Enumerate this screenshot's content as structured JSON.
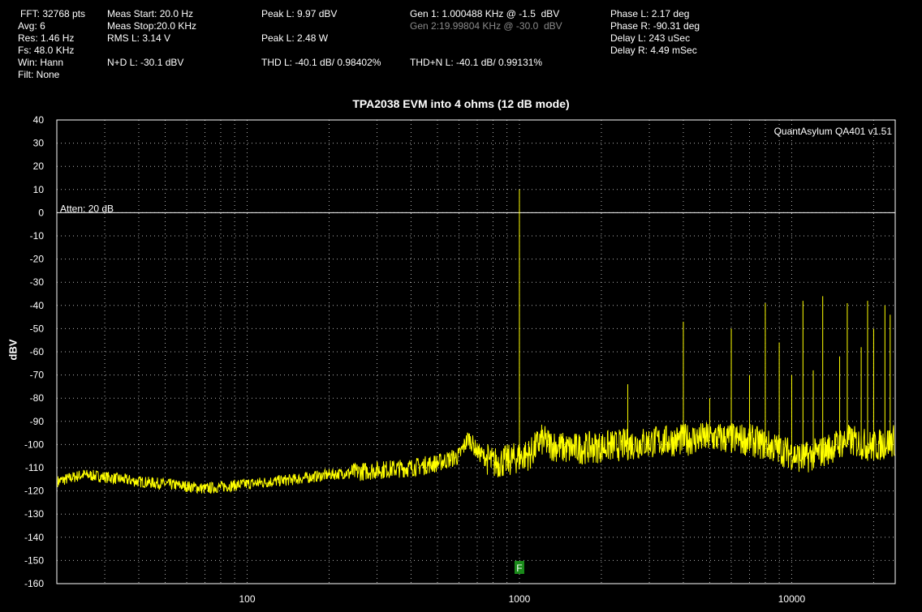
{
  "readout": {
    "fft": "FFT: 32768 pts",
    "avg": "Avg: 6",
    "res": "Res: 1.46 Hz",
    "fs": "Fs: 48.0 KHz",
    "win": "Win: Hann",
    "filt": "Filt: None",
    "meas_start": "Meas Start: 20.0 Hz",
    "meas_stop": "Meas Stop:20.0 KHz",
    "rms_l": "RMS L: 3.14 V",
    "nd_l": "N+D L: -30.1 dBV",
    "peak_l_dbv": "Peak L: 9.97 dBV",
    "peak_l_w": "Peak L: 2.48 W",
    "thd_l": "THD L: -40.1 dB/ 0.98402%",
    "gen1": "Gen 1: 1.000488 KHz @ -1.5  dBV",
    "gen2": "Gen 2:19.99804 KHz @ -30.0  dBV",
    "thdn_l": "THD+N L: -40.1 dB/ 0.99131%",
    "phase_l": "Phase L: 2.17 deg",
    "phase_r": "Phase R: -90.31 deg",
    "delay_l": "Delay L: 243 uSec",
    "delay_r": "Delay R: 4.49 mSec"
  },
  "chart_data": {
    "type": "line",
    "title": "TPA2038 EVM into 4 ohms (12 dB mode)",
    "xlabel": "",
    "ylabel": "dBV",
    "x_scale": "log",
    "xlim": [
      20,
      24000
    ],
    "ylim": [
      -160,
      40
    ],
    "x_ticks": [
      "100",
      "1000",
      "10000"
    ],
    "y_ticks": [
      "40",
      "30",
      "20",
      "10",
      "0",
      "-10",
      "-20",
      "-30",
      "-40",
      "-50",
      "-60",
      "-70",
      "-80",
      "-90",
      "-100",
      "-110",
      "-120",
      "-130",
      "-140",
      "-150",
      "-160"
    ],
    "grid": "dotted",
    "watermark": "QuantAsylum QA401 v1.51",
    "annotation": "Atten: 20 dB",
    "reference_line_y": 0,
    "marker_label": "F",
    "marker_x": 1000,
    "colors": {
      "trace": "#ffff00",
      "background": "#000000",
      "grid": "#ffffff",
      "marker": "#1a8a1a"
    },
    "noise_floor": [
      {
        "x": 20,
        "y": -116
      },
      {
        "x": 25,
        "y": -113
      },
      {
        "x": 30,
        "y": -114
      },
      {
        "x": 40,
        "y": -116
      },
      {
        "x": 50,
        "y": -117
      },
      {
        "x": 60,
        "y": -118
      },
      {
        "x": 70,
        "y": -119
      },
      {
        "x": 100,
        "y": -117
      },
      {
        "x": 150,
        "y": -115
      },
      {
        "x": 200,
        "y": -113
      },
      {
        "x": 300,
        "y": -111
      },
      {
        "x": 400,
        "y": -110
      },
      {
        "x": 500,
        "y": -108
      },
      {
        "x": 600,
        "y": -105
      },
      {
        "x": 650,
        "y": -97
      },
      {
        "x": 700,
        "y": -103
      },
      {
        "x": 800,
        "y": -108
      },
      {
        "x": 900,
        "y": -107
      },
      {
        "x": 1100,
        "y": -104
      },
      {
        "x": 1200,
        "y": -98
      },
      {
        "x": 1300,
        "y": -100
      },
      {
        "x": 1500,
        "y": -102
      },
      {
        "x": 2000,
        "y": -101
      },
      {
        "x": 2500,
        "y": -100
      },
      {
        "x": 3000,
        "y": -99
      },
      {
        "x": 4000,
        "y": -98
      },
      {
        "x": 5000,
        "y": -97
      },
      {
        "x": 7000,
        "y": -98
      },
      {
        "x": 9000,
        "y": -102
      },
      {
        "x": 11000,
        "y": -106
      },
      {
        "x": 13000,
        "y": -103
      },
      {
        "x": 16000,
        "y": -98
      },
      {
        "x": 20000,
        "y": -101
      },
      {
        "x": 24000,
        "y": -98
      }
    ],
    "peaks": [
      {
        "x": 1000,
        "y": 10
      },
      {
        "x": 2500,
        "y": -74
      },
      {
        "x": 4000,
        "y": -47
      },
      {
        "x": 5000,
        "y": -80
      },
      {
        "x": 6000,
        "y": -50
      },
      {
        "x": 7000,
        "y": -70
      },
      {
        "x": 8000,
        "y": -39
      },
      {
        "x": 9000,
        "y": -56
      },
      {
        "x": 10000,
        "y": -70
      },
      {
        "x": 11000,
        "y": -38
      },
      {
        "x": 12000,
        "y": -68
      },
      {
        "x": 13000,
        "y": -36
      },
      {
        "x": 15000,
        "y": -62
      },
      {
        "x": 16000,
        "y": -39
      },
      {
        "x": 18000,
        "y": -58
      },
      {
        "x": 19000,
        "y": -38
      },
      {
        "x": 20000,
        "y": -50
      },
      {
        "x": 22000,
        "y": -40
      },
      {
        "x": 23000,
        "y": -44
      }
    ]
  }
}
